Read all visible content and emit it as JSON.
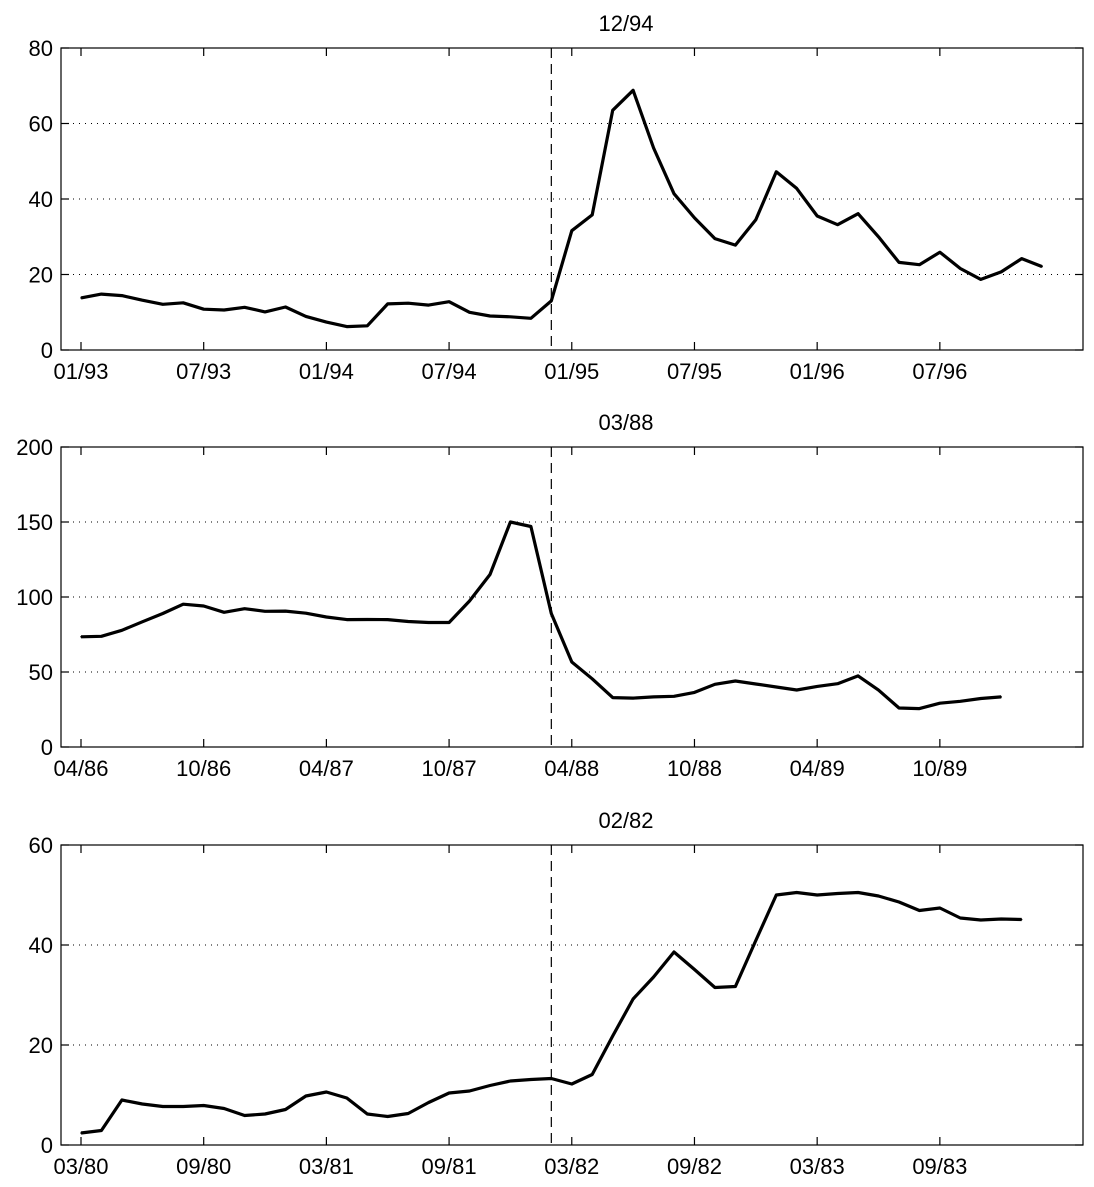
{
  "chart_data": [
    {
      "type": "line",
      "title": "12/94",
      "xlabel": "",
      "ylabel": "",
      "ylim": [
        0,
        80
      ],
      "yticks": [
        0,
        20,
        40,
        60,
        80
      ],
      "x_range_months": [
        "01/93",
        "02/97"
      ],
      "xticks": [
        "01/93",
        "07/93",
        "01/94",
        "07/94",
        "01/95",
        "07/95",
        "01/96",
        "07/96"
      ],
      "event_marker": "12/94",
      "grid": "horizontal dotted",
      "series": [
        {
          "x": [
            "01/93",
            "02/93",
            "03/93",
            "04/93",
            "05/93",
            "06/93",
            "07/93",
            "08/93",
            "09/93",
            "10/93",
            "11/93",
            "12/93",
            "01/94",
            "02/94",
            "03/94",
            "04/94",
            "05/94",
            "06/94",
            "07/94",
            "08/94",
            "09/94",
            "10/94",
            "11/94",
            "12/94",
            "01/95",
            "02/95",
            "03/95",
            "04/95",
            "05/95",
            "06/95",
            "07/95",
            "08/95",
            "09/95",
            "10/95",
            "11/95",
            "12/95",
            "01/96",
            "02/96",
            "03/96",
            "04/96",
            "05/96",
            "06/96",
            "07/96",
            "08/96",
            "09/96",
            "10/96",
            "11/96",
            "12/96"
          ],
          "values": [
            13.8,
            14.8,
            14.4,
            13.2,
            12.1,
            12.5,
            10.8,
            10.6,
            11.3,
            10.1,
            11.4,
            8.9,
            7.4,
            6.2,
            6.4,
            12.2,
            12.4,
            11.9,
            12.8,
            10.0,
            9.0,
            8.8,
            8.4,
            13.0,
            31.6,
            35.8,
            63.5,
            68.8,
            53.5,
            41.4,
            35.0,
            29.5,
            27.8,
            34.5,
            47.2,
            42.8,
            35.5,
            33.2,
            36.1,
            30.0,
            23.2,
            22.6,
            25.9,
            21.6,
            18.7,
            20.7,
            24.2,
            22.1
          ]
        }
      ]
    },
    {
      "type": "line",
      "title": "03/88",
      "xlabel": "",
      "ylabel": "",
      "ylim": [
        0,
        200
      ],
      "yticks": [
        0,
        50,
        100,
        150,
        200
      ],
      "x_range_months": [
        "04/86",
        "05/90"
      ],
      "xticks": [
        "04/86",
        "10/86",
        "04/87",
        "10/87",
        "04/88",
        "10/88",
        "04/89",
        "10/89"
      ],
      "event_marker": "03/88",
      "grid": "horizontal dotted",
      "series": [
        {
          "x": [
            "04/86",
            "05/86",
            "06/86",
            "07/86",
            "08/86",
            "09/86",
            "10/86",
            "11/86",
            "12/86",
            "01/87",
            "02/87",
            "03/87",
            "04/87",
            "05/87",
            "06/87",
            "07/87",
            "08/87",
            "09/87",
            "10/87",
            "11/87",
            "12/87",
            "01/88",
            "02/88",
            "03/88",
            "04/88",
            "05/88",
            "06/88",
            "07/88",
            "08/88",
            "09/88",
            "10/88",
            "11/88",
            "12/88",
            "01/89",
            "02/89",
            "03/89",
            "04/89",
            "05/89",
            "06/89",
            "07/89",
            "08/89",
            "09/89",
            "10/89",
            "11/89",
            "12/89",
            "01/90"
          ],
          "values": [
            73.5,
            73.8,
            77.8,
            83.5,
            89.0,
            95.2,
            94.0,
            89.8,
            92.2,
            90.5,
            90.6,
            89.2,
            86.7,
            84.9,
            85.0,
            84.9,
            83.7,
            83.0,
            83.0,
            97.3,
            115.0,
            150.0,
            147.0,
            89.0,
            56.7,
            45.5,
            32.9,
            32.6,
            33.4,
            33.8,
            36.4,
            41.8,
            44.0,
            42.0,
            40.0,
            38.0,
            40.4,
            42.2,
            47.4,
            37.9,
            26.0,
            25.6,
            29.2,
            30.5,
            32.3,
            33.4
          ]
        }
      ]
    },
    {
      "type": "line",
      "title": "02/82",
      "xlabel": "",
      "ylabel": "",
      "ylim": [
        0,
        60
      ],
      "yticks": [
        0,
        20,
        40,
        60
      ],
      "x_range_months": [
        "03/80",
        "04/84"
      ],
      "xticks": [
        "03/80",
        "09/80",
        "03/81",
        "09/81",
        "03/82",
        "09/82",
        "03/83",
        "09/83"
      ],
      "event_marker": "02/82",
      "grid": "horizontal dotted",
      "series": [
        {
          "x": [
            "03/80",
            "04/80",
            "05/80",
            "06/80",
            "07/80",
            "08/80",
            "09/80",
            "10/80",
            "11/80",
            "12/80",
            "01/81",
            "02/81",
            "03/81",
            "04/81",
            "05/81",
            "06/81",
            "07/81",
            "08/81",
            "09/81",
            "10/81",
            "11/81",
            "12/81",
            "01/82",
            "02/82",
            "03/82",
            "04/82",
            "05/82",
            "06/82",
            "07/82",
            "08/82",
            "09/82",
            "10/82",
            "11/82",
            "12/82",
            "01/83",
            "02/83",
            "03/83",
            "04/83",
            "05/83",
            "06/83",
            "07/83",
            "08/83",
            "09/83",
            "10/83",
            "11/83",
            "12/83",
            "01/84"
          ],
          "values": [
            2.4,
            2.9,
            9.0,
            8.2,
            7.7,
            7.7,
            7.9,
            7.3,
            5.9,
            6.2,
            7.1,
            9.8,
            10.6,
            9.4,
            6.2,
            5.7,
            6.3,
            8.5,
            10.4,
            10.8,
            11.9,
            12.8,
            13.1,
            13.3,
            12.2,
            14.1,
            21.8,
            29.2,
            33.6,
            38.6,
            35.1,
            31.5,
            31.7,
            40.9,
            50.0,
            50.5,
            50.0,
            50.3,
            50.5,
            49.8,
            48.6,
            46.9,
            47.4,
            45.4,
            45.0,
            45.2,
            45.1
          ]
        }
      ]
    }
  ]
}
